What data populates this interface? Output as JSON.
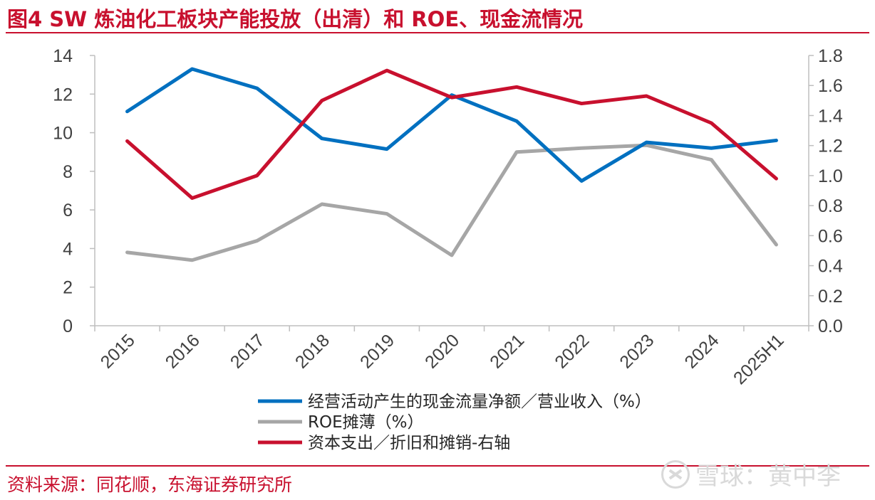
{
  "header": {
    "title": "图4  SW 炼油化工板块产能投放（出清）和 ROE、现金流情况"
  },
  "footer": {
    "source": "资料来源：同花顺，东海证券研究所",
    "watermark": "雪球：黄中李"
  },
  "chart_data": {
    "type": "line",
    "categories": [
      "2015",
      "2016",
      "2017",
      "2018",
      "2019",
      "2020",
      "2021",
      "2022",
      "2023",
      "2024",
      "2025H1"
    ],
    "y_left": {
      "range": [
        0,
        14
      ],
      "ticks": [
        "0",
        "2",
        "4",
        "6",
        "8",
        "10",
        "12",
        "14"
      ]
    },
    "y_right": {
      "range": [
        0,
        1.8
      ],
      "ticks": [
        "0.0",
        "0.2",
        "0.4",
        "0.6",
        "0.8",
        "1.0",
        "1.2",
        "1.4",
        "1.6",
        "1.8"
      ]
    },
    "legend_position": "bottom",
    "grid": false,
    "series": [
      {
        "name": "经营活动产生的现金流量净额／营业收入（%）",
        "axis": "left",
        "color": "#0070c0",
        "values": [
          11.1,
          13.3,
          12.3,
          9.7,
          9.15,
          11.95,
          10.6,
          7.5,
          9.5,
          9.2,
          9.6
        ]
      },
      {
        "name": "ROE摊薄（%）",
        "axis": "left",
        "color": "#a6a6a6",
        "values": [
          3.8,
          3.4,
          4.4,
          6.3,
          5.8,
          3.65,
          9.0,
          9.2,
          9.35,
          8.6,
          4.2
        ]
      },
      {
        "name": "资本支出／折旧和摊销-右轴",
        "axis": "right",
        "color": "#c8102e",
        "values": [
          1.23,
          0.85,
          1.0,
          1.5,
          1.7,
          1.52,
          1.59,
          1.48,
          1.53,
          1.35,
          0.98
        ]
      }
    ]
  }
}
